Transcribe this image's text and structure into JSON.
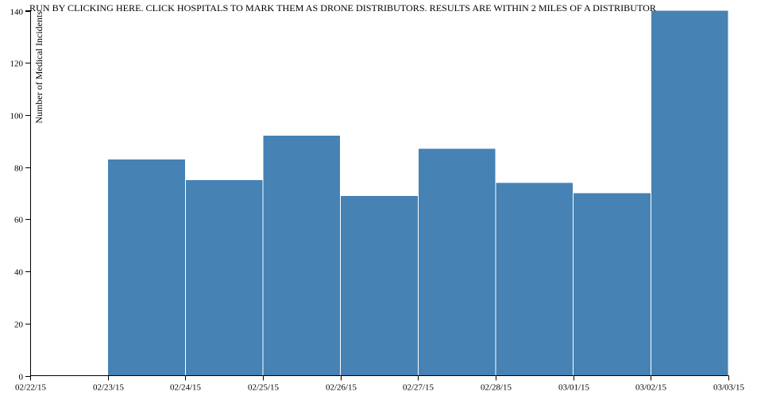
{
  "header": {
    "run_instruction": "RUN BY CLICKING HERE. CLICK HOSPITALS TO MARK THEM AS DRONE DISTRIBUTORS. RESULTS ARE WITHIN 2 MILES OF A DISTRIBUTOR"
  },
  "chart_data": {
    "type": "bar",
    "title": "",
    "xlabel": "",
    "ylabel": "Number of Medical Incidents",
    "x_ticks": [
      "02/22/15",
      "02/23/15",
      "02/24/15",
      "02/25/15",
      "02/26/15",
      "02/27/15",
      "02/28/15",
      "03/01/15",
      "03/02/15",
      "03/03/15"
    ],
    "y_ticks": [
      0,
      20,
      40,
      60,
      80,
      100,
      120,
      140
    ],
    "ylim": [
      0,
      140
    ],
    "bins": [
      {
        "start": "02/22/15",
        "end": "02/23/15",
        "value": 0
      },
      {
        "start": "02/23/15",
        "end": "02/24/15",
        "value": 83
      },
      {
        "start": "02/24/15",
        "end": "02/25/15",
        "value": 75
      },
      {
        "start": "02/25/15",
        "end": "02/26/15",
        "value": 92
      },
      {
        "start": "02/26/15",
        "end": "02/27/15",
        "value": 69
      },
      {
        "start": "02/27/15",
        "end": "02/28/15",
        "value": 87
      },
      {
        "start": "02/28/15",
        "end": "03/01/15",
        "value": 74
      },
      {
        "start": "03/01/15",
        "end": "03/02/15",
        "value": 70
      },
      {
        "start": "03/02/15",
        "end": "03/03/15",
        "value": 140
      }
    ],
    "bar_color": "#4682b4",
    "grid": false,
    "legend": "none"
  }
}
